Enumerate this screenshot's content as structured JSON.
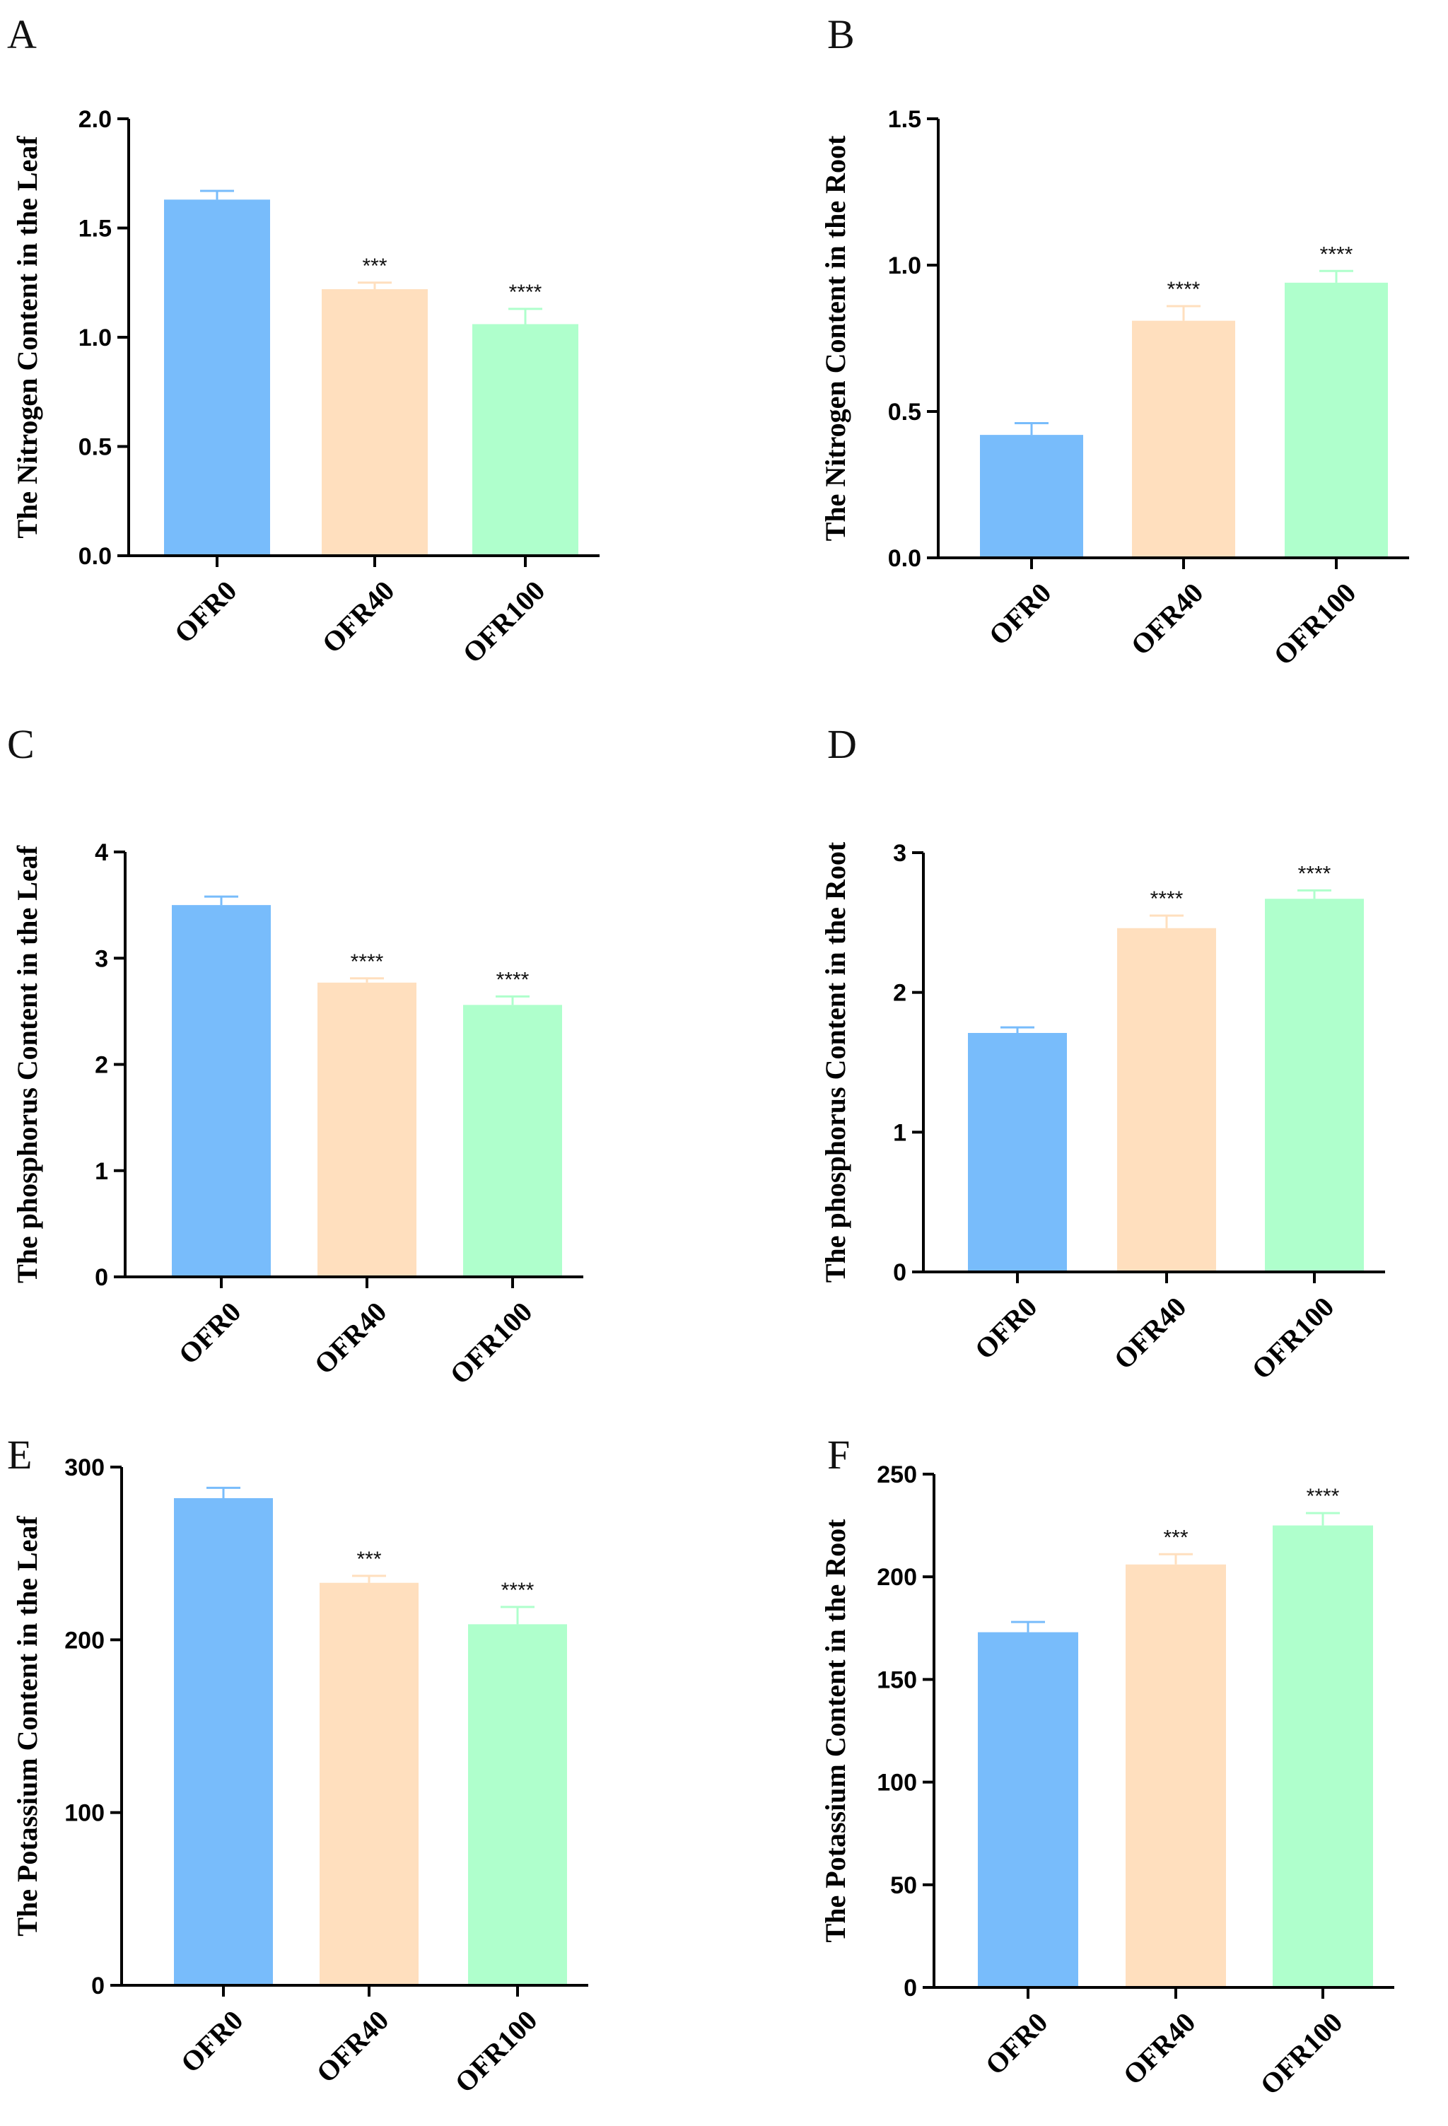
{
  "chart_data": [
    {
      "type": "bar",
      "panel": "A",
      "ylabel": "The Nitrogen Content in the Leaf",
      "categories": [
        "OFR0",
        "OFR40",
        "OFR100"
      ],
      "values": [
        1.63,
        1.22,
        1.06
      ],
      "errors": [
        0.04,
        0.03,
        0.07
      ],
      "significance": [
        "",
        "***",
        "****"
      ],
      "ylim": [
        0,
        2.0
      ],
      "yticks": [
        0,
        0.5,
        1.0,
        1.5,
        2.0
      ],
      "ytick_labels": [
        "0.0",
        "0.5",
        "1.0",
        "1.5",
        "2.0"
      ]
    },
    {
      "type": "bar",
      "panel": "B",
      "ylabel": "The Nitrogen Content in the Root",
      "categories": [
        "OFR0",
        "OFR40",
        "OFR100"
      ],
      "values": [
        0.42,
        0.81,
        0.94
      ],
      "errors": [
        0.04,
        0.05,
        0.04
      ],
      "significance": [
        "",
        "****",
        "****"
      ],
      "ylim": [
        0,
        1.5
      ],
      "yticks": [
        0,
        0.5,
        1.0,
        1.5
      ],
      "ytick_labels": [
        "0.0",
        "0.5",
        "1.0",
        "1.5"
      ]
    },
    {
      "type": "bar",
      "panel": "C",
      "ylabel": "The phosphorus Content in the Leaf",
      "categories": [
        "OFR0",
        "OFR40",
        "OFR100"
      ],
      "values": [
        3.5,
        2.77,
        2.56
      ],
      "errors": [
        0.08,
        0.04,
        0.08
      ],
      "significance": [
        "",
        "****",
        "****"
      ],
      "ylim": [
        0,
        4
      ],
      "yticks": [
        0,
        1,
        2,
        3,
        4
      ],
      "ytick_labels": [
        "0",
        "1",
        "2",
        "3",
        "4"
      ]
    },
    {
      "type": "bar",
      "panel": "D",
      "ylabel": "The phosphorus Content in the Root",
      "categories": [
        "OFR0",
        "OFR40",
        "OFR100"
      ],
      "values": [
        1.71,
        2.46,
        2.67
      ],
      "errors": [
        0.04,
        0.09,
        0.06
      ],
      "significance": [
        "",
        "****",
        "****"
      ],
      "ylim": [
        0,
        3
      ],
      "yticks": [
        0,
        1,
        2,
        3
      ],
      "ytick_labels": [
        "0",
        "1",
        "2",
        "3"
      ]
    },
    {
      "type": "bar",
      "panel": "E",
      "ylabel": "The Potassium Content in the Leaf",
      "categories": [
        "OFR0",
        "OFR40",
        "OFR100"
      ],
      "values": [
        282,
        233,
        209
      ],
      "errors": [
        6,
        4,
        10
      ],
      "significance": [
        "",
        "***",
        "****"
      ],
      "ylim": [
        0,
        300
      ],
      "yticks": [
        0,
        100,
        200,
        300
      ],
      "ytick_labels": [
        "0",
        "100",
        "200",
        "300"
      ]
    },
    {
      "type": "bar",
      "panel": "F",
      "ylabel": "The Potassium Content in the Root",
      "categories": [
        "OFR0",
        "OFR40",
        "OFR100"
      ],
      "values": [
        173,
        206,
        225
      ],
      "errors": [
        5,
        5,
        6
      ],
      "significance": [
        "",
        "***",
        "****"
      ],
      "ylim": [
        0,
        250
      ],
      "yticks": [
        0,
        50,
        100,
        150,
        200,
        250
      ],
      "ytick_labels": [
        "0",
        "50",
        "100",
        "150",
        "200",
        "250"
      ]
    }
  ],
  "colors": {
    "bar_fill": [
      "#78bcfb",
      "#ffdfbe",
      "#afffcc"
    ],
    "error_stroke": [
      "#78bcfb",
      "#ffdfbe",
      "#afffcc"
    ]
  }
}
